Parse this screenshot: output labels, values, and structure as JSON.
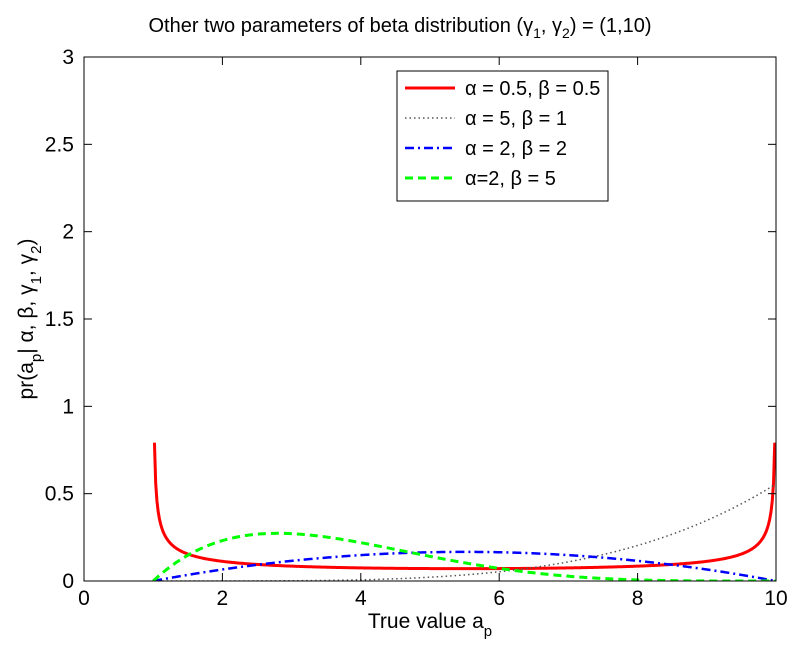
{
  "chart_data": {
    "type": "line",
    "title": "Other two parameters of beta distribution (γ₁, γ₂) = (1,10)",
    "title_parts": {
      "prefix": "Other two parameters of beta distribution (",
      "g": "γ",
      "sub1": "1",
      "sep": ", ",
      "sub2": "2",
      "suffix": ") = (1,10)"
    },
    "xlabel": "True value a_p",
    "xlabel_parts": {
      "main": "True value a",
      "sub": "p"
    },
    "ylabel": "pr(a_p | α, β, γ1, γ2)",
    "ylabel_parts": {
      "pre": "pr(a",
      "sub_p": "p",
      "mid": "| α, β, γ",
      "sub1": "1",
      "sep": ", γ",
      "sub2": "2",
      "post": ")"
    },
    "xlim": [
      0,
      10
    ],
    "ylim": [
      0,
      3
    ],
    "xticks": [
      "0",
      "2",
      "4",
      "6",
      "8",
      "10"
    ],
    "yticks": [
      "0",
      "0.5",
      "1",
      "1.5",
      "2",
      "2.5",
      "3"
    ],
    "grid": false,
    "legend_position": "top-right",
    "support": [
      1,
      10
    ],
    "series": [
      {
        "name": "α = 0.5, β = 0.5",
        "alpha": 0.5,
        "beta": 0.5,
        "color": "#ff0000",
        "style": "solid"
      },
      {
        "name": "α = 5, β = 1",
        "alpha": 5,
        "beta": 1,
        "color": "#555555",
        "style": "dotted"
      },
      {
        "name": "α = 2, β = 2",
        "alpha": 2,
        "beta": 2,
        "color": "#0000ff",
        "style": "dashdot"
      },
      {
        "name": "α=2, β = 5",
        "alpha": 2,
        "beta": 5,
        "color": "#00ff00",
        "style": "dashed"
      }
    ]
  }
}
